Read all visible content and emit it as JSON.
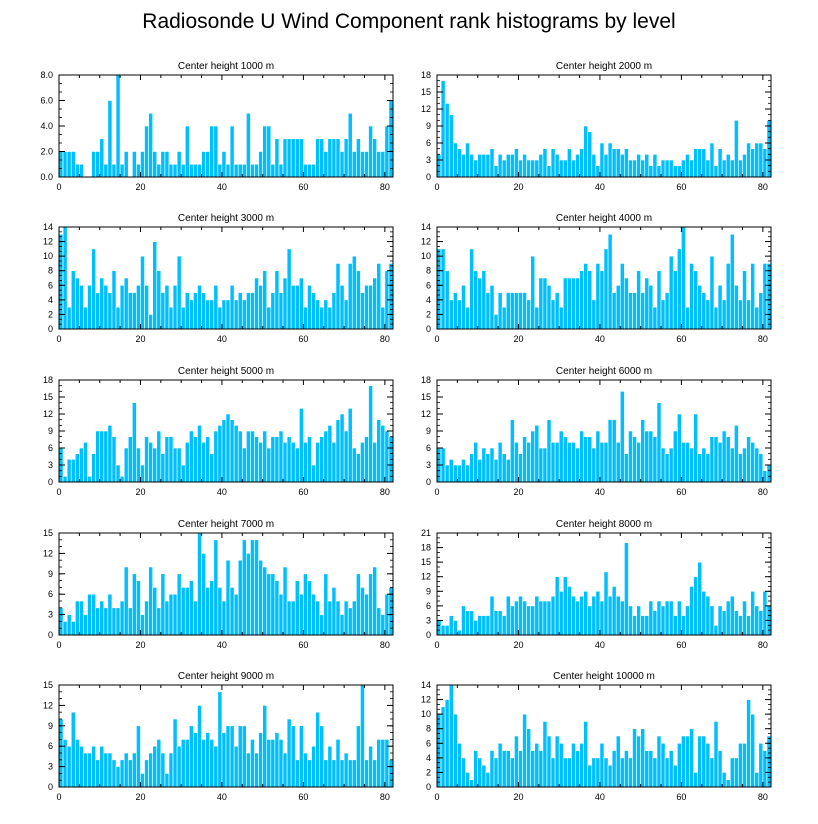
{
  "title": "Radiosonde U Wind Component rank histograms by level",
  "colors": {
    "bar_fill": "#00BFFF",
    "bar_edge": "#ffffff",
    "axis": "#000000"
  },
  "chart_data": [
    {
      "type": "bar",
      "title": "Center height 1000 m",
      "xlim": [
        0,
        82
      ],
      "ylim": [
        0,
        8
      ],
      "xticks": [
        "0",
        "20",
        "40",
        "60",
        "80"
      ],
      "yticks": [
        "0.0",
        "2.0",
        "4.0",
        "6.0",
        "8.0"
      ],
      "values": [
        2,
        2,
        2,
        2,
        1,
        1,
        0,
        0,
        2,
        2,
        3,
        1,
        6,
        1,
        8,
        1,
        2,
        0,
        2,
        1,
        2,
        4,
        5,
        2,
        1,
        2,
        2,
        1,
        1,
        2,
        1,
        4,
        1,
        1,
        1,
        2,
        2,
        4,
        4,
        1,
        2,
        1,
        4,
        1,
        1,
        1,
        5,
        1,
        1,
        2,
        4,
        4,
        1,
        3,
        1,
        3,
        3,
        3,
        3,
        3,
        1,
        1,
        1,
        3,
        3,
        2,
        3,
        3,
        3,
        2,
        3,
        5,
        2,
        3,
        2,
        2,
        4,
        3,
        2,
        2,
        4,
        6
      ]
    },
    {
      "type": "bar",
      "title": "Center height 2000 m",
      "xlim": [
        0,
        82
      ],
      "ylim": [
        0,
        18
      ],
      "xticks": [
        "0",
        "20",
        "40",
        "60",
        "80"
      ],
      "yticks": [
        "0",
        "3",
        "6",
        "9",
        "12",
        "15",
        "18"
      ],
      "values": [
        4,
        17,
        13,
        11,
        6,
        5,
        4,
        6,
        4,
        3,
        4,
        4,
        4,
        5,
        2,
        4,
        3,
        4,
        4,
        5,
        3,
        4,
        3,
        3,
        3,
        4,
        5,
        2,
        5,
        4,
        3,
        3,
        5,
        3,
        4,
        5,
        9,
        8,
        4,
        2,
        6,
        4,
        6,
        5,
        5,
        4,
        5,
        3,
        3,
        4,
        3,
        4,
        2,
        4,
        2,
        3,
        3,
        3,
        2,
        2,
        3,
        4,
        3,
        5,
        5,
        5,
        3,
        6,
        2,
        5,
        3,
        4,
        3,
        10,
        3,
        4,
        6,
        5,
        6,
        6,
        5,
        10
      ]
    },
    {
      "type": "bar",
      "title": "Center height 3000 m",
      "xlim": [
        0,
        82
      ],
      "ylim": [
        0,
        14
      ],
      "xticks": [
        "0",
        "20",
        "40",
        "60",
        "80"
      ],
      "yticks": [
        "0",
        "2",
        "4",
        "6",
        "8",
        "10",
        "12",
        "14"
      ],
      "values": [
        13,
        14,
        3,
        8,
        7,
        6,
        3,
        6,
        11,
        5,
        7,
        6,
        5,
        8,
        3,
        6,
        7,
        5,
        5,
        6,
        10,
        6,
        2,
        12,
        8,
        5,
        6,
        3,
        6,
        10,
        3,
        5,
        4,
        5,
        6,
        5,
        4,
        4,
        6,
        3,
        4,
        4,
        6,
        4,
        5,
        4,
        5,
        5,
        7,
        6,
        8,
        3,
        5,
        8,
        5,
        7,
        11,
        6,
        6,
        7,
        3,
        6,
        5,
        4,
        3,
        4,
        3,
        5,
        9,
        6,
        4,
        9,
        10,
        8,
        5,
        6,
        6,
        7,
        9,
        3,
        8,
        9
      ]
    },
    {
      "type": "bar",
      "title": "Center height 4000 m",
      "xlim": [
        0,
        82
      ],
      "ylim": [
        0,
        14
      ],
      "xticks": [
        "0",
        "20",
        "40",
        "60",
        "80"
      ],
      "yticks": [
        "0",
        "2",
        "4",
        "6",
        "8",
        "10",
        "12",
        "14"
      ],
      "values": [
        11,
        11,
        8,
        4,
        5,
        4,
        6,
        3,
        11,
        8,
        7,
        8,
        5,
        6,
        2,
        5,
        3,
        5,
        5,
        5,
        5,
        5,
        4,
        10,
        3,
        7,
        7,
        6,
        4,
        5,
        3,
        7,
        7,
        7,
        7,
        8,
        9,
        8,
        4,
        9,
        8,
        11,
        13,
        5,
        6,
        9,
        7,
        5,
        5,
        8,
        5,
        7,
        6,
        3,
        8,
        4,
        5,
        10,
        8,
        11,
        14,
        3,
        9,
        8,
        6,
        5,
        4,
        10,
        3,
        6,
        4,
        9,
        13,
        6,
        4,
        8,
        4,
        9,
        3,
        5,
        9,
        9
      ]
    },
    {
      "type": "bar",
      "title": "Center height 5000 m",
      "xlim": [
        0,
        82
      ],
      "ylim": [
        0,
        18
      ],
      "xticks": [
        "0",
        "20",
        "40",
        "60",
        "80"
      ],
      "yticks": [
        "0",
        "3",
        "6",
        "9",
        "12",
        "15",
        "18"
      ],
      "values": [
        6,
        1,
        4,
        4,
        5,
        6,
        7,
        1,
        5,
        9,
        9,
        9,
        10,
        8,
        3,
        1,
        6,
        8,
        14,
        6,
        3,
        8,
        7,
        6,
        9,
        5,
        8,
        8,
        6,
        6,
        3,
        7,
        9,
        8,
        10,
        7,
        8,
        5,
        9,
        10,
        11,
        12,
        11,
        10,
        9,
        6,
        9,
        9,
        8,
        7,
        9,
        6,
        8,
        8,
        9,
        7,
        8,
        7,
        6,
        13,
        7,
        8,
        3,
        7,
        8,
        9,
        10,
        7,
        11,
        12,
        9,
        13,
        6,
        5,
        7,
        8,
        17,
        7,
        11,
        10,
        9,
        8
      ]
    },
    {
      "type": "bar",
      "title": "Center height 6000 m",
      "xlim": [
        0,
        82
      ],
      "ylim": [
        0,
        18
      ],
      "xticks": [
        "0",
        "20",
        "40",
        "60",
        "80"
      ],
      "yticks": [
        "0",
        "3",
        "6",
        "9",
        "12",
        "15",
        "18"
      ],
      "values": [
        6,
        6,
        3,
        4,
        3,
        3,
        4,
        3,
        5,
        7,
        4,
        6,
        5,
        6,
        4,
        7,
        5,
        4,
        11,
        7,
        5,
        8,
        7,
        9,
        10,
        6,
        6,
        11,
        7,
        7,
        9,
        8,
        7,
        7,
        6,
        9,
        8,
        8,
        6,
        9,
        7,
        7,
        11,
        11,
        7,
        16,
        5,
        9,
        8,
        7,
        11,
        9,
        9,
        8,
        14,
        6,
        5,
        6,
        9,
        12,
        7,
        7,
        6,
        12,
        5,
        6,
        5,
        8,
        8,
        7,
        9,
        8,
        6,
        10,
        5,
        6,
        8,
        7,
        6,
        5,
        2,
        3
      ]
    },
    {
      "type": "bar",
      "title": "Center height 7000 m",
      "xlim": [
        0,
        82
      ],
      "ylim": [
        0,
        15
      ],
      "xticks": [
        "0",
        "20",
        "40",
        "60",
        "80"
      ],
      "yticks": [
        "0",
        "3",
        "6",
        "9",
        "12",
        "15"
      ],
      "values": [
        4,
        2,
        3,
        2,
        5,
        5,
        3,
        6,
        6,
        4,
        5,
        4,
        6,
        4,
        4,
        5,
        10,
        4,
        9,
        8,
        3,
        5,
        10,
        7,
        4,
        9,
        5,
        6,
        6,
        9,
        7,
        7,
        8,
        5,
        15,
        12,
        7,
        8,
        14,
        7,
        5,
        11,
        7,
        6,
        11,
        14,
        12,
        14,
        14,
        11,
        10,
        9,
        9,
        8,
        6,
        10,
        5,
        5,
        8,
        6,
        9,
        8,
        6,
        5,
        3,
        9,
        5,
        7,
        5,
        3,
        5,
        4,
        5,
        9,
        7,
        6,
        9,
        10,
        4,
        3,
        6,
        7
      ]
    },
    {
      "type": "bar",
      "title": "Center height 8000 m",
      "xlim": [
        0,
        82
      ],
      "ylim": [
        0,
        21
      ],
      "xticks": [
        "0",
        "20",
        "40",
        "60",
        "80"
      ],
      "yticks": [
        "0",
        "3",
        "6",
        "9",
        "12",
        "15",
        "18",
        "21"
      ],
      "values": [
        3,
        2,
        2,
        4,
        3,
        1,
        6,
        5,
        5,
        3,
        4,
        4,
        4,
        8,
        5,
        5,
        4,
        8,
        6,
        7,
        8,
        7,
        6,
        6,
        8,
        7,
        7,
        7,
        8,
        12,
        9,
        12,
        10,
        8,
        7,
        8,
        9,
        6,
        8,
        9,
        7,
        13,
        8,
        10,
        8,
        7,
        19,
        6,
        4,
        6,
        4,
        4,
        7,
        5,
        7,
        6,
        7,
        7,
        4,
        7,
        4,
        6,
        10,
        12,
        15,
        9,
        8,
        6,
        2,
        6,
        5,
        7,
        8,
        5,
        4,
        7,
        4,
        9,
        6,
        5,
        9,
        6
      ]
    },
    {
      "type": "bar",
      "title": "Center height 9000 m",
      "xlim": [
        0,
        82
      ],
      "ylim": [
        0,
        15
      ],
      "xticks": [
        "0",
        "20",
        "40",
        "60",
        "80"
      ],
      "yticks": [
        "0",
        "3",
        "6",
        "9",
        "12",
        "15"
      ],
      "values": [
        10,
        7,
        6,
        11,
        7,
        6,
        5,
        5,
        6,
        4,
        6,
        5,
        5,
        4,
        3,
        4,
        5,
        4,
        5,
        9,
        2,
        4,
        5,
        6,
        7,
        5,
        2,
        5,
        10,
        6,
        7,
        7,
        9,
        8,
        12,
        7,
        8,
        7,
        6,
        14,
        8,
        9,
        9,
        6,
        9,
        9,
        5,
        7,
        5,
        8,
        12,
        7,
        7,
        8,
        7,
        5,
        10,
        9,
        4,
        9,
        5,
        4,
        6,
        11,
        9,
        4,
        6,
        4,
        7,
        4,
        5,
        4,
        4,
        9,
        15,
        4,
        6,
        4,
        7,
        7,
        7,
        4
      ]
    },
    {
      "type": "bar",
      "title": "Center height 10000 m",
      "xlim": [
        0,
        82
      ],
      "ylim": [
        0,
        14
      ],
      "xticks": [
        "0",
        "20",
        "40",
        "60",
        "80"
      ],
      "yticks": [
        "0",
        "2",
        "4",
        "6",
        "8",
        "10",
        "12",
        "14"
      ],
      "values": [
        10,
        11,
        12,
        14,
        10,
        6,
        4,
        2,
        1,
        5,
        4,
        3,
        2,
        5,
        4,
        6,
        5,
        5,
        4,
        7,
        5,
        10,
        8,
        5,
        6,
        5,
        9,
        7,
        4,
        7,
        6,
        4,
        4,
        6,
        5,
        6,
        9,
        3,
        4,
        4,
        6,
        4,
        3,
        5,
        7,
        4,
        5,
        4,
        8,
        7,
        8,
        5,
        5,
        4,
        7,
        6,
        4,
        5,
        3,
        6,
        7,
        7,
        8,
        2,
        7,
        7,
        6,
        4,
        9,
        5,
        2,
        1,
        4,
        4,
        6,
        6,
        12,
        10,
        2,
        6,
        5,
        7
      ]
    }
  ]
}
